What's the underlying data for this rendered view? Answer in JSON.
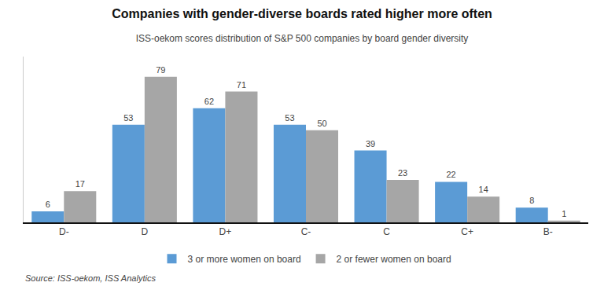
{
  "chart_data": {
    "type": "bar",
    "title": "Companies with gender-diverse boards rated higher more often",
    "subtitle": "ISS-oekom scores distribution of S&P 500 companies by board gender diversity",
    "categories": [
      "D-",
      "D",
      "D+",
      "C-",
      "C",
      "C+",
      "B-"
    ],
    "series": [
      {
        "name": "3 or more women on board",
        "color": "#5b9bd5",
        "values": [
          6,
          53,
          62,
          53,
          39,
          22,
          8
        ]
      },
      {
        "name": "2 or fewer women on board",
        "color": "#a6a6a6",
        "values": [
          17,
          79,
          71,
          50,
          23,
          14,
          1
        ]
      }
    ],
    "ylim": [
      0,
      90
    ],
    "grid": false,
    "legend": "bottom",
    "data_labels": true,
    "tick_labels": "x",
    "annotations": [
      "Source: ISS-oekom, ISS Analytics"
    ]
  }
}
